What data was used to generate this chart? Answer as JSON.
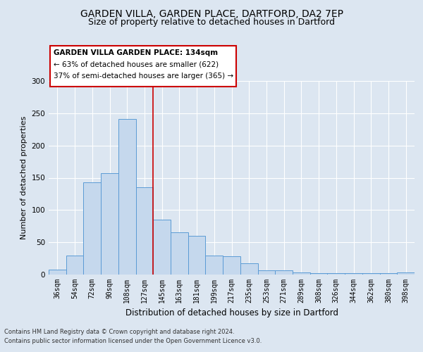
{
  "title1": "GARDEN VILLA, GARDEN PLACE, DARTFORD, DA2 7EP",
  "title2": "Size of property relative to detached houses in Dartford",
  "xlabel": "Distribution of detached houses by size in Dartford",
  "ylabel": "Number of detached properties",
  "footer1": "Contains HM Land Registry data © Crown copyright and database right 2024.",
  "footer2": "Contains public sector information licensed under the Open Government Licence v3.0.",
  "annotation_line1": "GARDEN VILLA GARDEN PLACE: 134sqm",
  "annotation_line2": "← 63% of detached houses are smaller (622)",
  "annotation_line3": "37% of semi-detached houses are larger (365) →",
  "bar_labels": [
    "36sqm",
    "54sqm",
    "72sqm",
    "90sqm",
    "108sqm",
    "127sqm",
    "145sqm",
    "163sqm",
    "181sqm",
    "199sqm",
    "217sqm",
    "235sqm",
    "253sqm",
    "271sqm",
    "289sqm",
    "308sqm",
    "326sqm",
    "344sqm",
    "362sqm",
    "380sqm",
    "398sqm"
  ],
  "bar_values": [
    8,
    30,
    143,
    157,
    241,
    135,
    85,
    65,
    60,
    30,
    28,
    17,
    7,
    7,
    3,
    2,
    2,
    2,
    2,
    2,
    3
  ],
  "bar_color": "#c5d8ed",
  "bar_edge_color": "#5b9bd5",
  "vline_color": "#cc0000",
  "vline_x": 5.5,
  "annotation_box_edge": "#cc0000",
  "annotation_box_fill": "#ffffff",
  "ylim": [
    0,
    300
  ],
  "yticks": [
    0,
    50,
    100,
    150,
    200,
    250,
    300
  ],
  "background_color": "#dce6f1",
  "plot_bg_color": "#dce6f1",
  "grid_color": "#ffffff",
  "title1_fontsize": 10,
  "title2_fontsize": 9,
  "xlabel_fontsize": 8.5,
  "ylabel_fontsize": 8,
  "tick_fontsize": 7
}
